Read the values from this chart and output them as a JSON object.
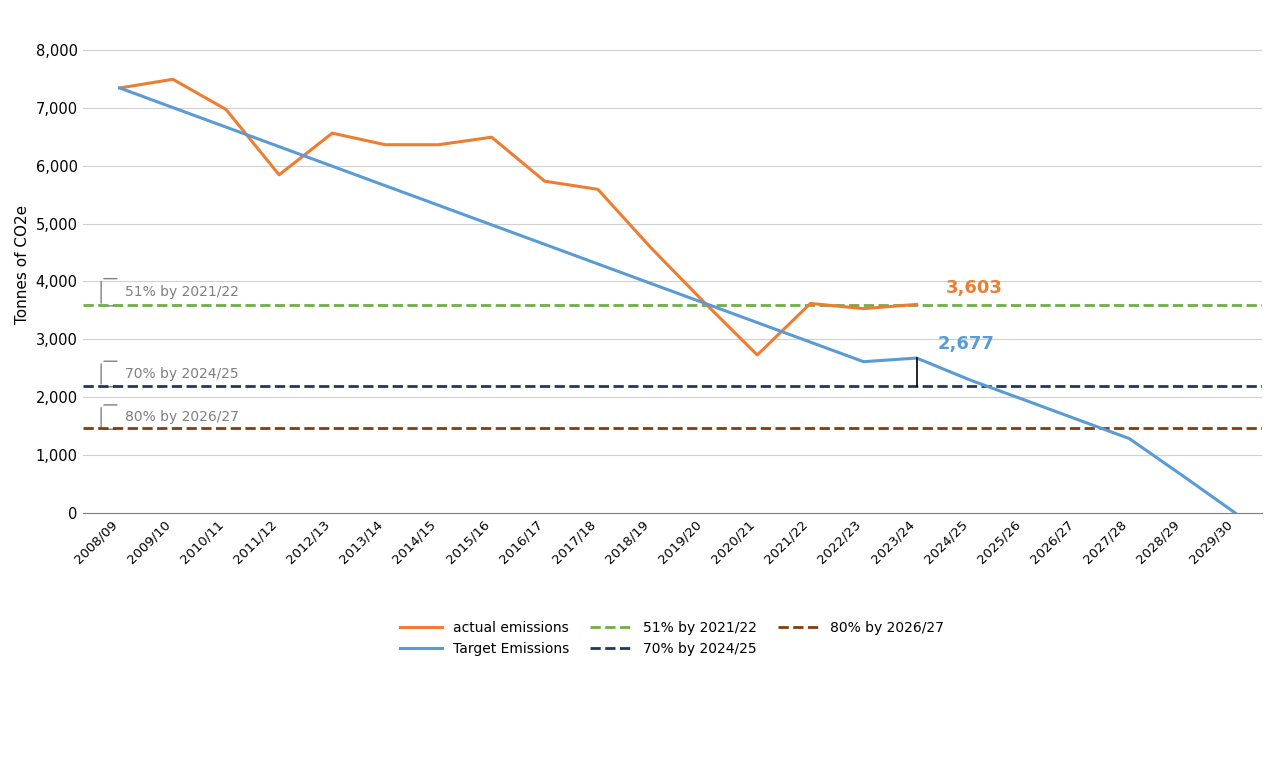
{
  "ylabel": "Tonnes of CO2e",
  "x_labels": [
    "2008/09",
    "2009/10",
    "2010/11",
    "2011/12",
    "2012/13",
    "2013/14",
    "2014/15",
    "2015/16",
    "2016/17",
    "2017/18",
    "2018/19",
    "2019/20",
    "2020/21",
    "2021/22",
    "2022/23",
    "2023/24",
    "2024/25",
    "2025/26",
    "2026/27",
    "2027/28",
    "2028/29",
    "2029/30"
  ],
  "actual_emissions": [
    7340,
    7490,
    6970,
    5840,
    6560,
    6360,
    6360,
    6490,
    5730,
    5590,
    4580,
    3640,
    2730,
    3620,
    3530,
    3603,
    null,
    null,
    null,
    null,
    null,
    null
  ],
  "target_emissions": [
    7340,
    7002,
    6665,
    6327,
    5990,
    5652,
    5315,
    4977,
    4640,
    4302,
    3964,
    3627,
    3289,
    2952,
    2614,
    2677,
    2300,
    1963,
    1625,
    1288,
    650,
    0
  ],
  "line_51": 3598,
  "line_70": 2202,
  "line_80": 1468,
  "actual_color": "#ED7D31",
  "target_color": "#5B9BD5",
  "line51_color": "#70AD47",
  "line70_color": "#1F3864",
  "line80_color": "#843C0C",
  "ylim": [
    0,
    8600
  ],
  "yticks": [
    0,
    1000,
    2000,
    3000,
    4000,
    5000,
    6000,
    7000,
    8000
  ],
  "label_51": "51% by 2021/22",
  "label_70": "70% by 2024/25",
  "label_80": "80% by 2026/27",
  "label_actual": "actual emissions",
  "label_target": "Target Emissions",
  "annot_3603_xi": 15,
  "annot_3603_val": 3603,
  "annot_2677_xi": 15,
  "annot_2677_val": 2677
}
